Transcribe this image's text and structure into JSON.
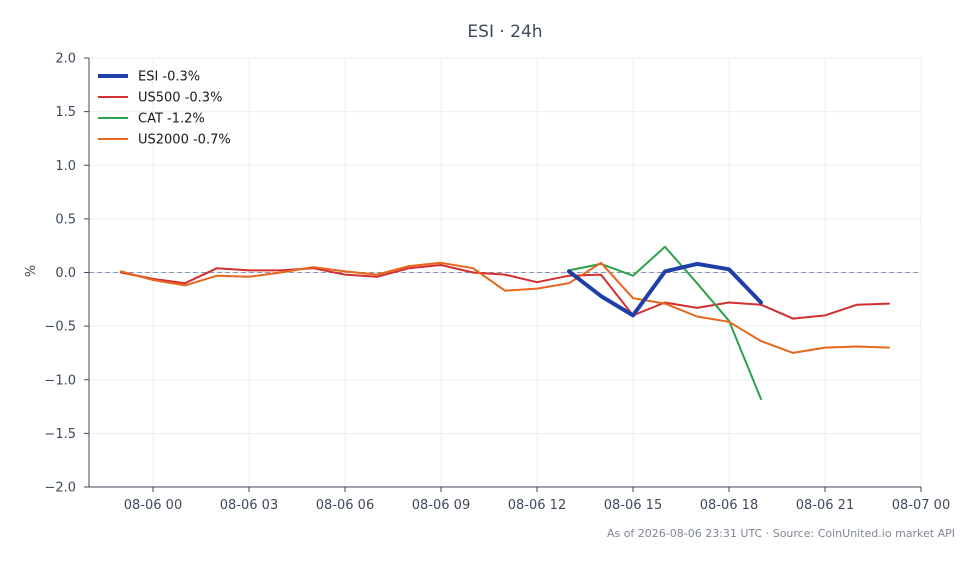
{
  "chart_data": {
    "type": "line",
    "title": "ESI · 24h",
    "ylabel": "%",
    "ylim": [
      -2.0,
      2.0
    ],
    "yticks": [
      2.0,
      1.5,
      1.0,
      0.5,
      0.0,
      -0.5,
      -1.0,
      -1.5,
      -2.0
    ],
    "ytick_labels": [
      "2.0",
      "1.5",
      "1.0",
      "0.5",
      "0.0",
      "−0.5",
      "−1.0",
      "−1.5",
      "−2.0"
    ],
    "x_axis": "datetime",
    "xlim": [
      "2026-08-05 22:00",
      "2026-08-07 00:00"
    ],
    "xticks": [
      "2026-08-06 00:00",
      "2026-08-06 03:00",
      "2026-08-06 06:00",
      "2026-08-06 09:00",
      "2026-08-06 12:00",
      "2026-08-06 15:00",
      "2026-08-06 18:00",
      "2026-08-06 21:00",
      "2026-08-07 00:00"
    ],
    "xtick_labels": [
      "08-06 00",
      "08-06 03",
      "08-06 06",
      "08-06 09",
      "08-06 12",
      "08-06 15",
      "08-06 18",
      "08-06 21",
      "08-07 00"
    ],
    "grid": true,
    "zero_line": true,
    "legend_position": "top-left",
    "series": [
      {
        "name": "ESI -0.3%",
        "color": "#1f3fa8",
        "emphasis": true,
        "points": [
          [
            "2026-08-06 13:00",
            0.01
          ],
          [
            "2026-08-06 14:00",
            -0.22
          ],
          [
            "2026-08-06 15:00",
            -0.4
          ],
          [
            "2026-08-06 16:00",
            0.01
          ],
          [
            "2026-08-06 17:00",
            0.08
          ],
          [
            "2026-08-06 18:00",
            0.03
          ],
          [
            "2026-08-06 19:00",
            -0.28
          ]
        ]
      },
      {
        "name": "US500 -0.3%",
        "color": "#d32f2f",
        "points": [
          [
            "2026-08-05 23:00",
            0.0
          ],
          [
            "2026-08-06 00:00",
            -0.06
          ],
          [
            "2026-08-06 01:00",
            -0.1
          ],
          [
            "2026-08-06 02:00",
            0.04
          ],
          [
            "2026-08-06 03:00",
            0.02
          ],
          [
            "2026-08-06 04:00",
            0.02
          ],
          [
            "2026-08-06 05:00",
            0.04
          ],
          [
            "2026-08-06 06:00",
            -0.02
          ],
          [
            "2026-08-06 07:00",
            -0.04
          ],
          [
            "2026-08-06 08:00",
            0.04
          ],
          [
            "2026-08-06 09:00",
            0.07
          ],
          [
            "2026-08-06 10:00",
            0.0
          ],
          [
            "2026-08-06 11:00",
            -0.02
          ],
          [
            "2026-08-06 12:00",
            -0.09
          ],
          [
            "2026-08-06 13:00",
            -0.03
          ],
          [
            "2026-08-06 14:00",
            -0.02
          ],
          [
            "2026-08-06 15:00",
            -0.4
          ],
          [
            "2026-08-06 16:00",
            -0.28
          ],
          [
            "2026-08-06 17:00",
            -0.33
          ],
          [
            "2026-08-06 18:00",
            -0.28
          ],
          [
            "2026-08-06 19:00",
            -0.3
          ],
          [
            "2026-08-06 20:00",
            -0.43
          ],
          [
            "2026-08-06 21:00",
            -0.4
          ],
          [
            "2026-08-06 22:00",
            -0.3
          ],
          [
            "2026-08-06 23:00",
            -0.29
          ]
        ]
      },
      {
        "name": "CAT -1.2%",
        "color": "#2ca24a",
        "points": [
          [
            "2026-08-06 13:00",
            0.02
          ],
          [
            "2026-08-06 14:00",
            0.08
          ],
          [
            "2026-08-06 15:00",
            -0.03
          ],
          [
            "2026-08-06 16:00",
            0.24
          ],
          [
            "2026-08-06 17:00",
            -0.1
          ],
          [
            "2026-08-06 18:00",
            -0.45
          ],
          [
            "2026-08-06 19:00",
            -1.18
          ]
        ]
      },
      {
        "name": "US2000 -0.7%",
        "color": "#e8651c",
        "points": [
          [
            "2026-08-05 23:00",
            0.01
          ],
          [
            "2026-08-06 00:00",
            -0.07
          ],
          [
            "2026-08-06 01:00",
            -0.12
          ],
          [
            "2026-08-06 02:00",
            -0.03
          ],
          [
            "2026-08-06 03:00",
            -0.04
          ],
          [
            "2026-08-06 04:00",
            0.0
          ],
          [
            "2026-08-06 05:00",
            0.05
          ],
          [
            "2026-08-06 06:00",
            0.01
          ],
          [
            "2026-08-06 07:00",
            -0.02
          ],
          [
            "2026-08-06 08:00",
            0.06
          ],
          [
            "2026-08-06 09:00",
            0.09
          ],
          [
            "2026-08-06 10:00",
            0.04
          ],
          [
            "2026-08-06 11:00",
            -0.17
          ],
          [
            "2026-08-06 12:00",
            -0.15
          ],
          [
            "2026-08-06 13:00",
            -0.1
          ],
          [
            "2026-08-06 14:00",
            0.09
          ],
          [
            "2026-08-06 15:00",
            -0.24
          ],
          [
            "2026-08-06 16:00",
            -0.29
          ],
          [
            "2026-08-06 17:00",
            -0.41
          ],
          [
            "2026-08-06 18:00",
            -0.46
          ],
          [
            "2026-08-06 19:00",
            -0.64
          ],
          [
            "2026-08-06 20:00",
            -0.75
          ],
          [
            "2026-08-06 21:00",
            -0.7
          ],
          [
            "2026-08-06 22:00",
            -0.69
          ],
          [
            "2026-08-06 23:00",
            -0.7
          ]
        ]
      }
    ]
  },
  "footer": {
    "text": "As of 2026-08-06 23:31 UTC · Source: CoinUnited.io market API"
  },
  "colors": {
    "axis": "#3d4a5c",
    "grid": "#ebedf0",
    "zero_line": "#8a94b3"
  }
}
